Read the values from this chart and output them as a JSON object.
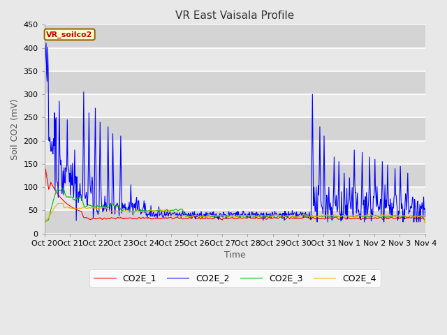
{
  "title": "VR East Vaisala Profile",
  "xlabel": "Time",
  "ylabel": "Soil CO2 (mV)",
  "ylim": [
    0,
    450
  ],
  "yticks": [
    0,
    50,
    100,
    150,
    200,
    250,
    300,
    350,
    400,
    450
  ],
  "xtick_labels": [
    "Oct 20",
    "Oct 21",
    "Oct 22",
    "Oct 23",
    "Oct 24",
    "Oct 25",
    "Oct 26",
    "Oct 27",
    "Oct 28",
    "Oct 29",
    "Oct 30",
    "Oct 31",
    "Nov 1",
    "Nov 2",
    "Nov 3",
    "Nov 4"
  ],
  "legend_label": "VR_soilco2",
  "series_names": [
    "CO2E_1",
    "CO2E_2",
    "CO2E_3",
    "CO2E_4"
  ],
  "series_colors": [
    "#ff0000",
    "#0000ff",
    "#00bb00",
    "#ffaa00"
  ],
  "fig_bg_color": "#e8e8e8",
  "plot_bg_color": "#e0e0e0",
  "grid_color": "#ffffff",
  "title_fontsize": 11,
  "axis_fontsize": 9,
  "tick_fontsize": 8,
  "legend_fontsize": 9,
  "annotation_fontsize": 8
}
